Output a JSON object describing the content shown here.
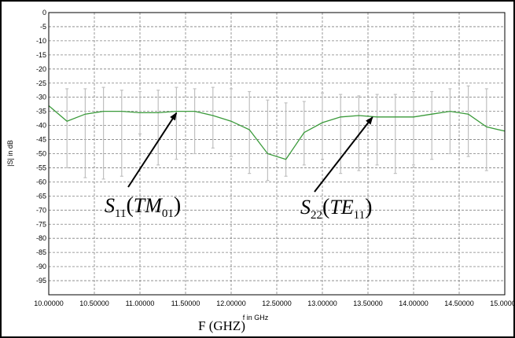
{
  "chart_data": {
    "type": "line",
    "title": "",
    "ylabel": "|S| in dB",
    "xlabel": "f in GHz",
    "outer_xlabel": "F (GHZ)",
    "xlim": [
      10.0,
      15.0
    ],
    "ylim": [
      -100,
      0
    ],
    "x_ticks": [
      "10.00000",
      "10.50000",
      "11.00000",
      "11.50000",
      "12.00000",
      "12.50000",
      "13.00000",
      "13.50000",
      "14.00000",
      "14.50000",
      "15.00000"
    ],
    "y_ticks": [
      "0",
      "-5",
      "-10",
      "-15",
      "-20",
      "-25",
      "-30",
      "-35",
      "-40",
      "-45",
      "-50",
      "-55",
      "-60",
      "-65",
      "-70",
      "-75",
      "-80",
      "-85",
      "-90",
      "-95"
    ],
    "grid": true,
    "series_color": "#3a9a3a",
    "series": [
      {
        "x": [
          10.0,
          10.2,
          10.4,
          10.6,
          10.8,
          11.0,
          11.2,
          11.4,
          11.6,
          11.8,
          12.0,
          12.2,
          12.4,
          12.6,
          12.8,
          13.0,
          13.2,
          13.4,
          13.6,
          13.8,
          14.0,
          14.2,
          14.4,
          14.6,
          14.8,
          15.0
        ],
        "y": [
          -33,
          -38.5,
          -36,
          -35,
          -35,
          -35.5,
          -35.5,
          -35,
          -35,
          -36.5,
          -38.5,
          -41.5,
          -50,
          -52,
          -42.5,
          -39,
          -37,
          -36.5,
          -37,
          -37,
          -37,
          -36,
          -35,
          -36,
          -40.5,
          -42
        ]
      }
    ],
    "error_bars": {
      "color": "#c0c0c0",
      "x": [
        10.2,
        10.4,
        10.6,
        10.8,
        11.0,
        11.2,
        11.4,
        11.6,
        11.8,
        12.0,
        12.2,
        12.4,
        12.6,
        12.8,
        13.0,
        13.2,
        13.4,
        13.6,
        13.8,
        14.0,
        14.2,
        14.4,
        14.6,
        14.8
      ],
      "low": [
        -55,
        -58.5,
        -59,
        -58,
        -43,
        -54,
        -52,
        -50,
        -48,
        -51,
        -57,
        -59.5,
        -58,
        -54,
        -52,
        -57,
        -56,
        -54,
        -57,
        -54,
        -52,
        -50,
        -51,
        -56
      ],
      "high": [
        -27,
        -27,
        -26.5,
        -27.5,
        -28,
        -27.5,
        -26.5,
        -27,
        -26.5,
        -27,
        -28,
        -31,
        -32,
        -31.5,
        -28.5,
        -29,
        -29.5,
        -29,
        -29,
        -28,
        -28,
        -27,
        -26,
        -27
      ]
    },
    "annotations": [
      {
        "base": "S",
        "sub": "11",
        "paren": "TM",
        "paren_sub": "01",
        "arrow_to": [
          11.4,
          -35
        ]
      },
      {
        "base": "S",
        "sub": "22",
        "paren": "TE",
        "paren_sub": "11",
        "arrow_to": [
          13.55,
          -36.5
        ]
      }
    ]
  }
}
